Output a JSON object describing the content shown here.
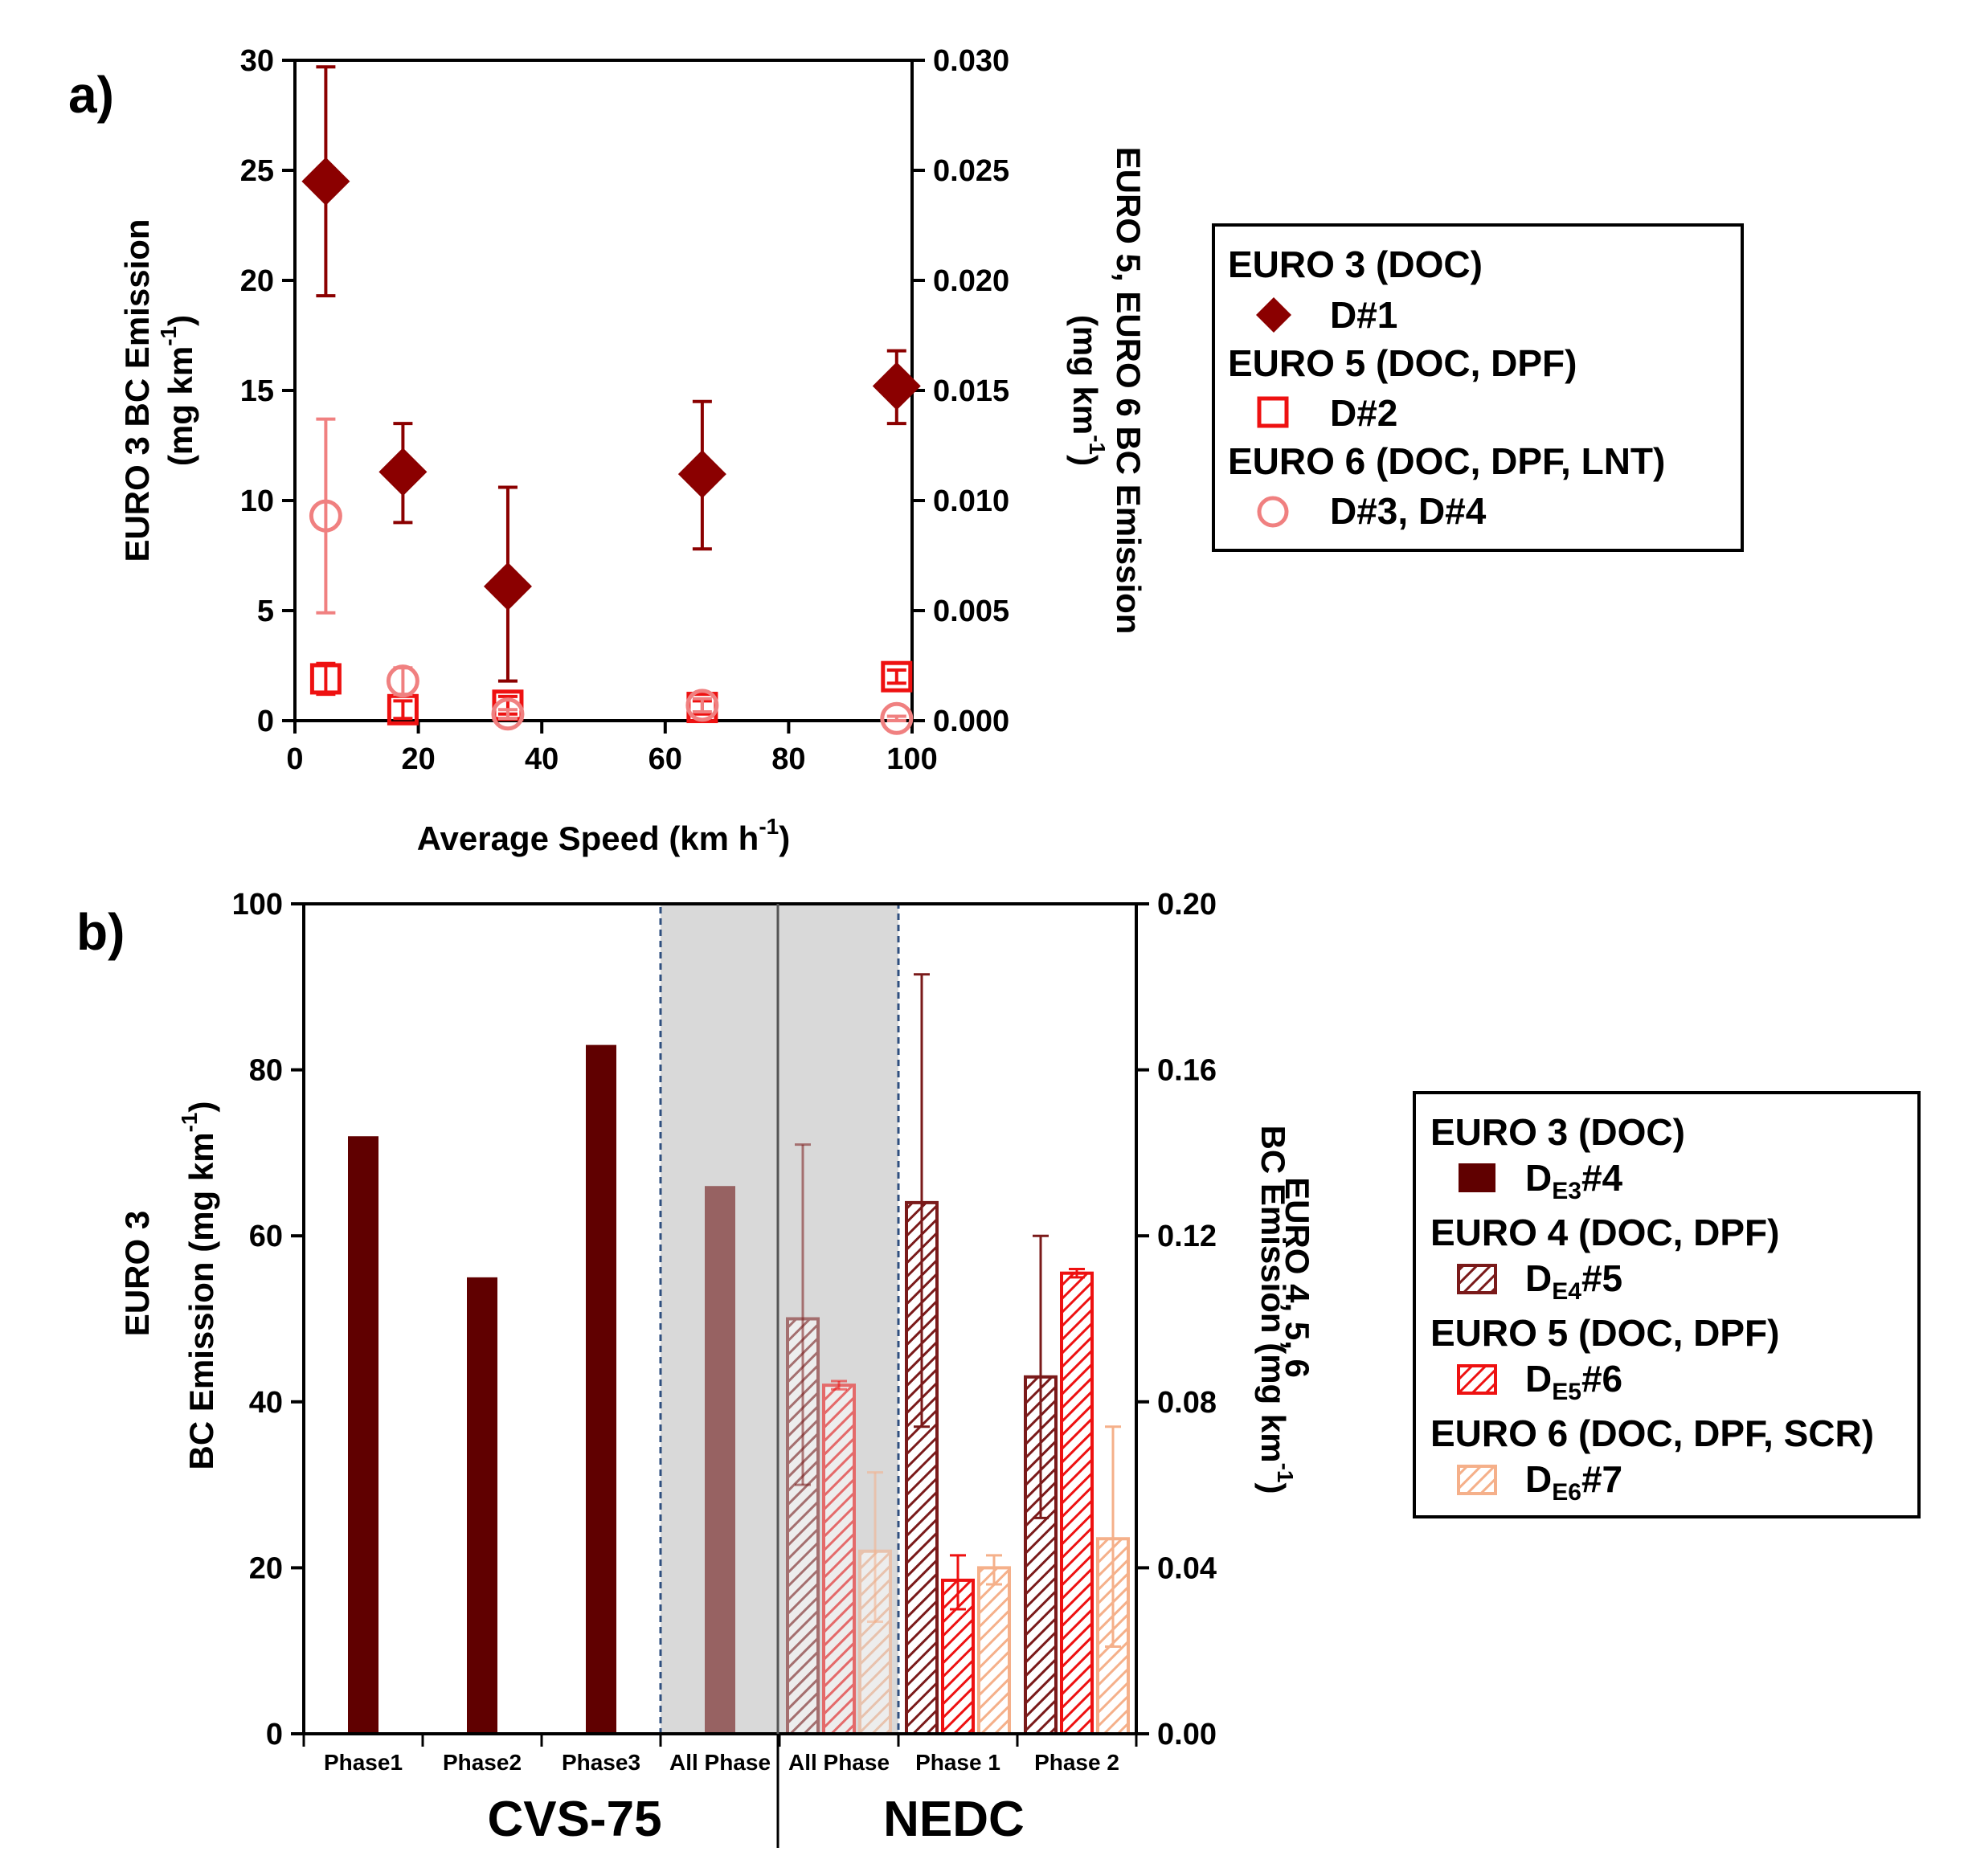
{
  "colors": {
    "euro3": "#8b0000",
    "euro3_bar": "#600000",
    "euro5": "#ee1111",
    "euro6": "#f08080",
    "euro4_b": "#7a1a1a",
    "euro6_b": "#f5b08a",
    "shade": "#d9d9d9"
  },
  "panel_a": {
    "label": "a)",
    "chart_data": {
      "type": "scatter",
      "xlabel": "Average Speed (km h-1)",
      "xlabel_main": "Average Speed (km h",
      "xlabel_sup": "-1",
      "xlabel_close": ")",
      "xlim": [
        0,
        100
      ],
      "xticks": [
        "0",
        "20",
        "40",
        "60",
        "80",
        "100"
      ],
      "ylabel_left_line1": "EURO 3 BC Emission",
      "ylabel_left_line2_main": "(mg km",
      "ylabel_left_line2_sup": "-1",
      "ylabel_left_line2_close": ")",
      "ylim_left": [
        0,
        30
      ],
      "yticks_left": [
        "0",
        "5",
        "10",
        "15",
        "20",
        "25",
        "30"
      ],
      "ylabel_right_line1": "EURO 5, EURO 6 BC Emission",
      "ylabel_right_line2_main": "(mg km",
      "ylabel_right_line2_sup": "-1",
      "ylabel_right_line2_close": ")",
      "ylim_right": [
        0,
        0.03
      ],
      "yticks_right": [
        "0.000",
        "0.005",
        "0.010",
        "0.015",
        "0.020",
        "0.025",
        "0.030"
      ],
      "series": [
        {
          "name": "D#1",
          "group": "EURO 3 (DOC)",
          "marker": "diamond",
          "axis": "left",
          "points": [
            [
              5,
              24.5,
              19.3,
              29.7
            ],
            [
              17.5,
              11.3,
              9.0,
              13.5
            ],
            [
              34.5,
              6.1,
              1.8,
              10.6
            ],
            [
              66,
              11.2,
              7.8,
              14.5
            ],
            [
              97.5,
              15.2,
              13.5,
              16.8
            ]
          ]
        },
        {
          "name": "D#2",
          "group": "EURO 5 (DOC, DPF)",
          "marker": "square",
          "axis": "right",
          "points": [
            [
              5,
              0.0019,
              0.0012,
              0.0026
            ],
            [
              17.5,
              0.0005,
              0.0001,
              0.0009
            ],
            [
              34.5,
              0.0007,
              0.0003,
              0.0011
            ],
            [
              66,
              0.0006,
              0.0003,
              0.0009
            ],
            [
              97.5,
              0.002,
              0.0017,
              0.0023
            ]
          ]
        },
        {
          "name": "D#3, D#4",
          "group": "EURO 6 (DOC, DPF, LNT)",
          "marker": "circle",
          "axis": "right",
          "points": [
            [
              5,
              0.0093,
              0.0049,
              0.0137
            ],
            [
              17.5,
              0.0018,
              0.0012,
              0.0024
            ],
            [
              34.5,
              0.0003,
              0.0001,
              0.0005
            ],
            [
              66,
              0.0007,
              0.0004,
              0.001
            ],
            [
              97.5,
              0.0001,
              0.0,
              0.0002
            ]
          ]
        }
      ]
    },
    "legend": {
      "groups": [
        "EURO 3 (DOC)",
        "EURO 5 (DOC, DPF)",
        "EURO 6 (DOC, DPF, LNT)"
      ],
      "items": [
        "D#1",
        "D#2",
        "D#3, D#4"
      ]
    }
  },
  "panel_b": {
    "label": "b)",
    "chart_data": {
      "type": "bar",
      "categories": [
        "Phase1",
        "Phase2",
        "Phase3",
        "All Phase",
        "All Phase",
        "Phase 1",
        "Phase 2"
      ],
      "groups": [
        "CVS-75",
        "NEDC"
      ],
      "ylabel_left_line1": "EURO 3",
      "ylabel_left_line2_main": "BC Emission (mg km",
      "ylabel_left_line2_sup": "-1",
      "ylabel_left_line2_close": ")",
      "ylim_left": [
        0,
        100
      ],
      "yticks_left": [
        "0",
        "20",
        "40",
        "60",
        "80",
        "100"
      ],
      "ylabel_right_line1": "EURO 4, 5, 6",
      "ylabel_right_line2_main": "BC Emission (mg km",
      "ylabel_right_line2_sup": "-1",
      "ylabel_right_line2_close": ")",
      "ylim_right": [
        0,
        0.2
      ],
      "yticks_right": [
        "0.00",
        "0.04",
        "0.08",
        "0.12",
        "0.16",
        "0.20"
      ],
      "series": [
        {
          "name": "DE3#4",
          "group": "EURO 3 (DOC)",
          "axis": "left",
          "values": [
            72,
            55,
            83,
            66,
            null,
            null,
            null
          ],
          "err": [
            null,
            null,
            null,
            null,
            null,
            null,
            null
          ]
        },
        {
          "name": "DE4#5",
          "group": "EURO 4 (DOC, DPF)",
          "axis": "right",
          "values": [
            null,
            null,
            null,
            null,
            0.1,
            0.128,
            0.086
          ],
          "err": [
            null,
            null,
            null,
            null,
            [
              0.06,
              0.142
            ],
            [
              0.074,
              0.183
            ],
            [
              0.052,
              0.12
            ]
          ]
        },
        {
          "name": "DE5#6",
          "group": "EURO 5 (DOC, DPF)",
          "axis": "right",
          "values": [
            null,
            null,
            null,
            null,
            0.084,
            0.037,
            0.111
          ],
          "err": [
            null,
            null,
            null,
            null,
            [
              0.083,
              0.085
            ],
            [
              0.03,
              0.043
            ],
            [
              0.11,
              0.112
            ]
          ]
        },
        {
          "name": "DE6#7",
          "group": "EURO 6 (DOC, DPF, SCR)",
          "axis": "right",
          "values": [
            null,
            null,
            null,
            null,
            0.044,
            0.04,
            0.047
          ],
          "err": [
            null,
            null,
            null,
            null,
            [
              0.027,
              0.063
            ],
            [
              0.036,
              0.043
            ],
            [
              0.021,
              0.074
            ]
          ]
        }
      ]
    },
    "legend": {
      "groups": [
        "EURO 3 (DOC)",
        "EURO 4 (DOC, DPF)",
        "EURO 5 (DOC, DPF)",
        "EURO 6 (DOC, DPF, SCR)"
      ],
      "items": [
        {
          "base": "D",
          "sub": "E3",
          "rest": "#4"
        },
        {
          "base": "D",
          "sub": "E4",
          "rest": "#5"
        },
        {
          "base": "D",
          "sub": "E5",
          "rest": "#6"
        },
        {
          "base": "D",
          "sub": "E6",
          "rest": "#7"
        }
      ]
    }
  }
}
